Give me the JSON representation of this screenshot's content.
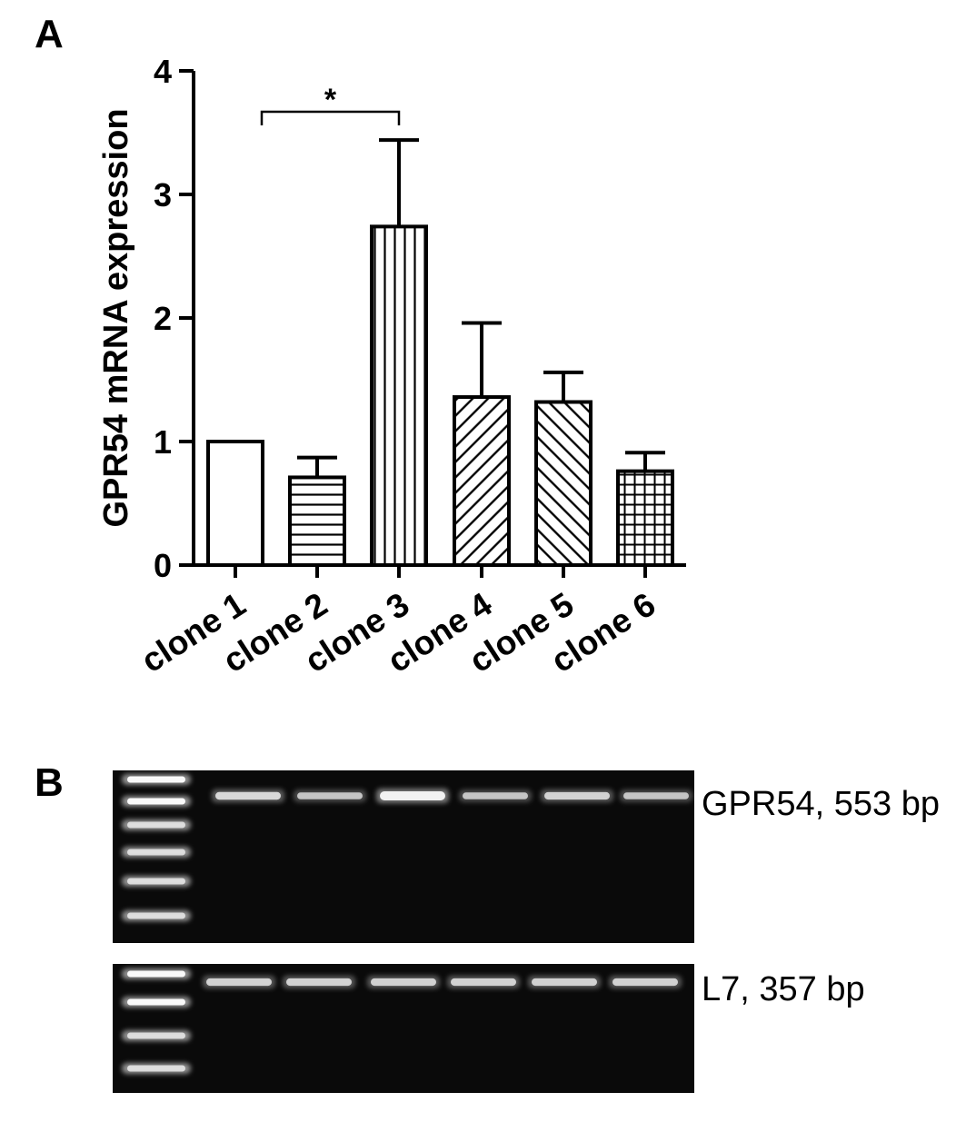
{
  "panels": {
    "a_letter": "A",
    "b_letter": "B"
  },
  "chart_data": {
    "type": "bar",
    "title": "",
    "xlabel": "",
    "ylabel": "GPR54 mRNA expression",
    "ylim": [
      0,
      4
    ],
    "yticks": [
      "0",
      "1",
      "2",
      "3",
      "4"
    ],
    "categories": [
      "clone 1",
      "clone 2",
      "clone 3",
      "clone 4",
      "clone 5",
      "clone 6"
    ],
    "values": [
      1.0,
      0.71,
      2.74,
      1.36,
      1.32,
      0.76
    ],
    "errors": [
      0.0,
      0.16,
      0.7,
      0.6,
      0.24,
      0.15
    ],
    "fill_patterns": [
      "none",
      "horizontal",
      "vertical",
      "diagonal-up",
      "diagonal-down",
      "grid"
    ],
    "grid": false,
    "significance": [
      {
        "from": "clone 1",
        "to": "clone 3",
        "label": "*"
      }
    ]
  },
  "gel": {
    "top_label": "GPR54, 553 bp",
    "bottom_label": "L7, 357 bp",
    "lanes": 6,
    "top_band_intensity": [
      0.75,
      0.6,
      1.0,
      0.6,
      0.7,
      0.6
    ],
    "bottom_band_intensity": [
      0.7,
      0.7,
      0.7,
      0.7,
      0.7,
      0.7
    ]
  },
  "colors": {
    "ink": "#000000",
    "background": "#ffffff",
    "gel_background": "#0a0a0a",
    "band": "#ffffff"
  }
}
